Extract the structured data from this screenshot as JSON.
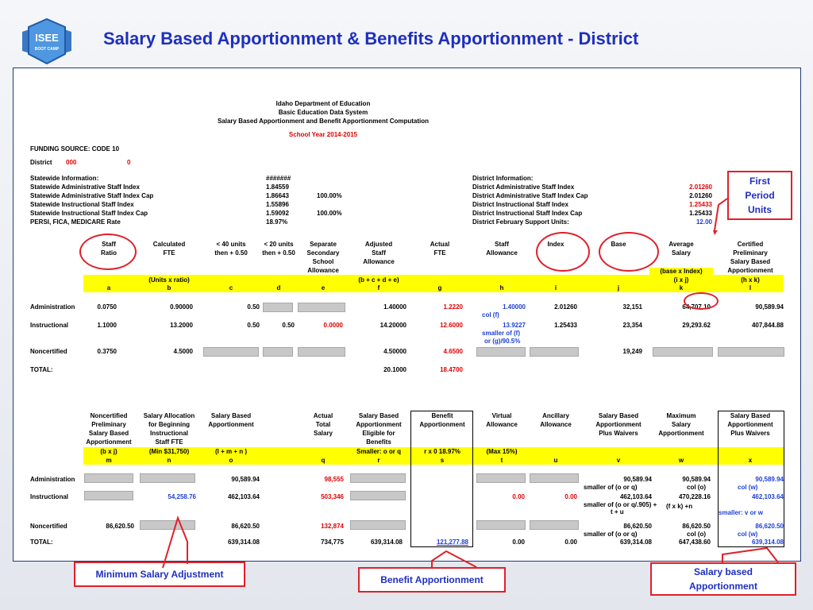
{
  "slide": {
    "title": "Salary Based Apportionment & Benefits Apportionment - District",
    "logo_text": "ISEE",
    "logo_sub": "BOOT CAMP"
  },
  "sheet": {
    "header": [
      "Idaho Department of Education",
      "Basic Education Data System",
      "Salary Based Apportionment and Benefit Apportionment Computation"
    ],
    "school_year": "School Year 2014-2015",
    "funding_source": "FUNDING SOURCE: CODE 10",
    "district_label": "District",
    "district_code": "000",
    "district_val": "0",
    "statewide": [
      {
        "label": "Statewide Information:",
        "value": "#######",
        "pct": ""
      },
      {
        "label": "Statewide Administrative Staff Index",
        "value": "1.84559",
        "pct": ""
      },
      {
        "label": "Statewide Administrative Staff Index Cap",
        "value": "1.86643",
        "pct": "100.00%"
      },
      {
        "label": "Statewide Instructional Staff Index",
        "value": "1.55896",
        "pct": ""
      },
      {
        "label": "Statewide Instructional Staff Index Cap",
        "value": "1.59092",
        "pct": "100.00%"
      },
      {
        "label": "PERSI, FICA, MEDICARE Rate",
        "value": "18.97%",
        "pct": ""
      }
    ],
    "district_info": [
      {
        "label": "District Information:",
        "value": ""
      },
      {
        "label": "District Administrative Staff Index",
        "value": "2.01260"
      },
      {
        "label": "District Administrative Staff Index Cap",
        "value": "2.01260"
      },
      {
        "label": "District Instructional Staff Index",
        "value": "1.25433"
      },
      {
        "label": "District Instructional Staff Index Cap",
        "value": "1.25433"
      },
      {
        "label": "District February Support Units:",
        "value": "12.00"
      }
    ],
    "top_headers": [
      [
        "Staff",
        "Ratio"
      ],
      [
        "Calculated",
        "FTE"
      ],
      [
        "< 40 units",
        "then + 0.50"
      ],
      [
        "< 20 units",
        "then + 0.50"
      ],
      [
        "Separate",
        "Secondary",
        "School",
        "Allowance"
      ],
      [
        "Adjusted",
        "Staff",
        "Allowance"
      ],
      [
        "Actual",
        "FTE"
      ],
      [
        "Staff",
        "Allowance"
      ],
      [
        "Index"
      ],
      [
        "Base"
      ],
      [
        "Average",
        "Salary"
      ],
      [
        "Certified",
        "Preliminary",
        "Salary Based",
        "Apportionment"
      ]
    ],
    "top_formulas": {
      "b": "(Units x ratio)",
      "f": "(b + c + d + e)",
      "k_pre": "(base x Index)",
      "k": "(i x j)",
      "l": "(h x k)"
    },
    "top_letters": [
      "a",
      "b",
      "c",
      "d",
      "e",
      "f",
      "g",
      "h",
      "i",
      "j",
      "k",
      "l"
    ],
    "top_rows": [
      {
        "name": "Administration",
        "a": "0.0750",
        "b": "0.90000",
        "c": "0.50",
        "d": "",
        "e": "",
        "f": "1.40000",
        "g": "1.2220",
        "h": "1.40000",
        "h_note": "col (f)",
        "i": "2.01260",
        "j": "32,151",
        "k": "64,707.10",
        "l": "90,589.94"
      },
      {
        "name": "Instructional",
        "a": "1.1000",
        "b": "13.2000",
        "c": "0.50",
        "d": "0.50",
        "e": "0.0000",
        "f": "14.20000",
        "g": "12.6000",
        "h": "13.9227",
        "h_note": "smaller of (f)",
        "h_note2": "or (g)/90.5%",
        "i": "1.25433",
        "j": "23,354",
        "k": "29,293.62",
        "l": "407,844.88"
      },
      {
        "name": "Noncertified",
        "a": "0.3750",
        "b": "4.5000",
        "f": "4.50000",
        "g": "4.6500",
        "j": "19,249"
      },
      {
        "name": "TOTAL:",
        "f": "20.1000",
        "g": "18.4700"
      }
    ],
    "bottom_headers": [
      [
        "Noncertified",
        "Preliminary",
        "Salary Based",
        "Apportionment"
      ],
      [
        "Salary Allocation",
        "for Beginning",
        "Instructional",
        "Staff FTE"
      ],
      [
        "Salary Based",
        "Apportionment"
      ],
      [
        "Actual",
        "Total",
        "Salary"
      ],
      [
        "Salary Based",
        "Apportionment",
        "Eligible for",
        "Benefits"
      ],
      [
        "Benefit",
        "Apportionment"
      ],
      [
        "Virtual",
        "Allowance"
      ],
      [
        "Ancillary",
        "Allowance"
      ],
      [
        "Salary Based",
        "Apportionment",
        "Plus Waivers"
      ],
      [
        "Maximum",
        "Salary",
        "Apportionment"
      ],
      [
        "Salary Based",
        "Apportionment",
        "Plus Waivers"
      ]
    ],
    "bottom_formulas": {
      "m": "(b x j)",
      "n": "(Min $31,750)",
      "o": "(l + m + n )",
      "r": "Smaller: o or q",
      "s": "r x 0 18.97%",
      "t": "(Max 15%)"
    },
    "bottom_letters": [
      "m",
      "n",
      "o",
      "q",
      "r",
      "s",
      "t",
      "u",
      "v",
      "w",
      "x"
    ],
    "bottom_rows": [
      {
        "name": "Administration",
        "o": "90,589.94",
        "q": "98,555",
        "v": "90,589.94",
        "v_note": "smaller of (o or q)",
        "w": "90,589.94",
        "w_note": "col (o)",
        "x": "90,589.94",
        "x_note": "col (w)"
      },
      {
        "name": "Instructional",
        "n": "54,258.76",
        "o": "462,103.64",
        "q": "503,346",
        "t": "0.00",
        "u": "0.00",
        "v": "462,103.64",
        "v_note": "smaller of (o or q/.905) +",
        "v_note2": "t + u",
        "w": "470,228.16",
        "w_note": "(f x k) +n",
        "x": "462,103.64",
        "x_note": "smaller: v or w"
      },
      {
        "name": "Noncertified",
        "m": "86,620.50",
        "o": "86,620.50",
        "q": "132,874",
        "v": "86,620.50",
        "v_note": "smaller of (o or q)",
        "w": "86,620.50",
        "w_note": "col (o)",
        "x": "86,620.50",
        "x_note": "col (w)"
      },
      {
        "name": "TOTAL:",
        "o": "639,314.08",
        "q": "734,775",
        "r": "639,314.08",
        "s": "121,277.88",
        "t": "0.00",
        "u": "0.00",
        "v": "639,314.08",
        "w": "647,438.60",
        "x": "639,314.08"
      }
    ]
  },
  "callouts": {
    "first_period": "First Period Units",
    "min_salary": "Minimum  Salary Adjustment",
    "benefit": "Benefit Apportionment",
    "salary_based": "Salary based Apportionment"
  },
  "colors": {
    "title": "#1f2fbf",
    "accent_red": "#e00000",
    "blue_text": "#1c3fd8",
    "highlight": "#ffff00"
  }
}
